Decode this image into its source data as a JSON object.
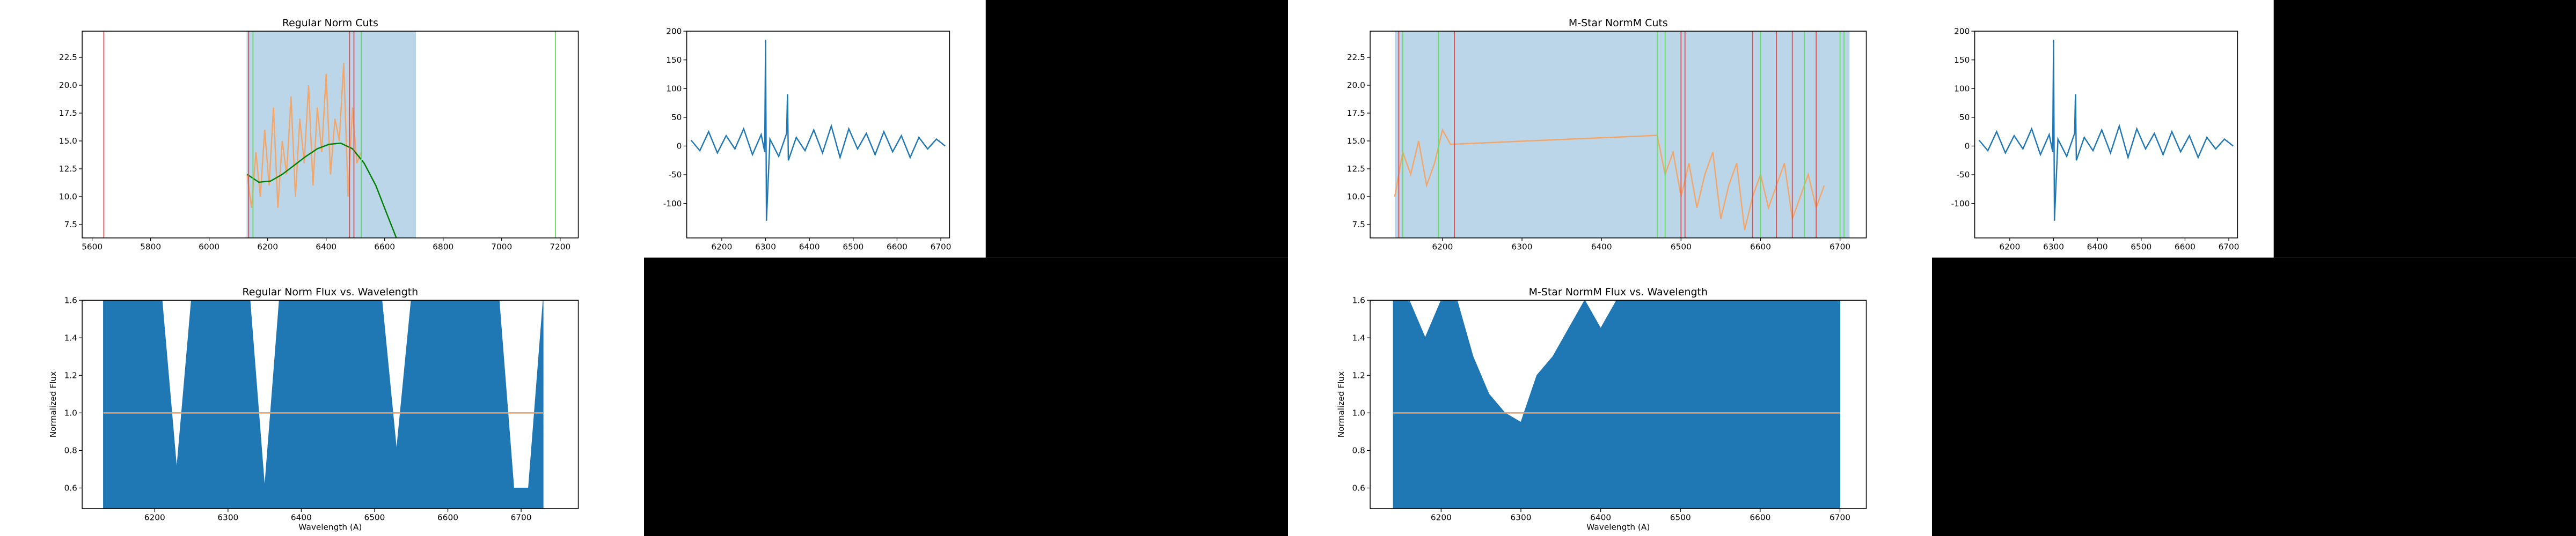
{
  "chart_data": [
    {
      "type": "line",
      "title": "Regular Norm Cuts",
      "xlim": [
        5566,
        7262
      ],
      "xticks": [
        5600,
        5800,
        6000,
        6200,
        6400,
        6600,
        6800,
        7000,
        7200
      ],
      "ylim": [
        6.3,
        24.85
      ],
      "yticks": [
        7.5,
        {
          "value": 10,
          "label": "10.0"
        },
        12.5,
        {
          "value": 15,
          "label": "15.0"
        },
        17.5,
        {
          "value": 20,
          "label": "20.0"
        },
        22.5
      ],
      "spans": [
        {
          "x0": 6128,
          "x1": 6707,
          "color": "#bcd6e9"
        }
      ],
      "series": [
        {
          "color": "#f3a66a",
          "x": [
            6130,
            6145,
            6160,
            6175,
            6190,
            6205,
            6220,
            6235,
            6250,
            6265,
            6280,
            6295,
            6310,
            6325,
            6340,
            6355,
            6370,
            6385,
            6400,
            6415,
            6430,
            6445,
            6460,
            6475,
            6490,
            6505,
            6520
          ],
          "values": [
            12,
            9,
            14,
            10,
            16,
            11,
            18,
            9,
            15,
            12,
            19,
            10,
            17,
            13,
            20,
            11,
            18,
            14,
            21,
            12,
            17,
            15,
            22,
            10,
            18,
            13,
            14
          ]
        },
        {
          "color": "#008000",
          "x": [
            6130,
            6170,
            6210,
            6250,
            6290,
            6330,
            6370,
            6410,
            6450,
            6490,
            6530,
            6570,
            6610,
            6640
          ],
          "values": [
            12.0,
            11.3,
            11.4,
            12.0,
            12.8,
            13.6,
            14.3,
            14.7,
            14.8,
            14.3,
            13.0,
            11.0,
            8.3,
            6.3
          ]
        }
      ],
      "vlines": [
        {
          "x": 5640,
          "color": "#e05050"
        },
        {
          "x": 6135,
          "color": "#e05050"
        },
        {
          "x": 6150,
          "color": "#66dd66"
        },
        {
          "x": 6480,
          "color": "#e05050"
        },
        {
          "x": 6495,
          "color": "#e05050"
        },
        {
          "x": 6520,
          "color": "#66dd66"
        },
        {
          "x": 7184,
          "color": "#66dd66"
        }
      ]
    },
    {
      "type": "line",
      "xlim": [
        6120,
        6720
      ],
      "xticks": [
        6200,
        6300,
        6400,
        6500,
        6600,
        6700
      ],
      "ylim": [
        -160,
        200
      ],
      "yticks": [
        -100,
        -50,
        0,
        50,
        100,
        150,
        200
      ],
      "series": [
        {
          "color": "#1f77b4",
          "x": [
            6130,
            6150,
            6170,
            6190,
            6210,
            6230,
            6250,
            6270,
            6290,
            6298,
            6300,
            6302,
            6310,
            6330,
            6348,
            6350,
            6352,
            6370,
            6390,
            6410,
            6430,
            6450,
            6470,
            6490,
            6510,
            6530,
            6550,
            6570,
            6590,
            6610,
            6630,
            6650,
            6670,
            6690,
            6710
          ],
          "values": [
            10,
            -8,
            25,
            -12,
            18,
            -5,
            30,
            -15,
            20,
            -10,
            185,
            -130,
            12,
            -18,
            22,
            90,
            -25,
            15,
            -8,
            28,
            -12,
            35,
            -20,
            30,
            -5,
            22,
            -15,
            25,
            -10,
            18,
            -20,
            15,
            -5,
            12,
            0
          ]
        }
      ]
    },
    {
      "type": "line",
      "title": "Regular Norm Flux vs. Wavelength",
      "xlabel": "Wavelength (A)",
      "ylabel": "Normalized Flux",
      "xlim": [
        6101,
        6778
      ],
      "xticks": [
        6200,
        6300,
        6400,
        6500,
        6600,
        6700
      ],
      "ylim": [
        0.49,
        1.6
      ],
      "yticks": [
        0.6,
        0.8,
        {
          "value": 1,
          "label": "1.0"
        },
        1.2,
        1.4,
        1.6
      ],
      "bands": [
        {
          "color": "#1f77b4",
          "x": [
            6130,
            6150,
            6170,
            6190,
            6210,
            6230,
            6250,
            6270,
            6290,
            6310,
            6330,
            6350,
            6370,
            6390,
            6410,
            6430,
            6450,
            6470,
            6490,
            6510,
            6530,
            6550,
            6570,
            6590,
            6610,
            6630,
            6650,
            6670,
            6690,
            6710,
            6730
          ],
          "upper": [
            1.6,
            1.6,
            1.6,
            1.6,
            1.6,
            0.7,
            1.6,
            1.6,
            1.6,
            1.6,
            1.6,
            0.6,
            1.6,
            1.6,
            1.6,
            1.6,
            1.6,
            1.6,
            1.6,
            1.6,
            0.8,
            1.6,
            1.6,
            1.6,
            1.6,
            1.6,
            1.6,
            1.6,
            0.6,
            0.6,
            1.6
          ],
          "lower": [
            0.49,
            0.49,
            0.49,
            0.49,
            0.49,
            0.49,
            0.49,
            0.49,
            0.49,
            0.49,
            0.49,
            0.49,
            0.49,
            0.49,
            0.49,
            0.49,
            0.49,
            0.49,
            0.49,
            0.49,
            0.49,
            0.49,
            0.49,
            0.49,
            0.49,
            0.49,
            0.49,
            0.49,
            0.49,
            0.49,
            0.49
          ]
        }
      ],
      "series": [
        {
          "color": "#e0a070",
          "x": [
            6130,
            6730
          ],
          "values": [
            1,
            1
          ]
        }
      ]
    },
    {
      "type": "line",
      "title": "M-Star NormM Cuts",
      "xlim": [
        6109,
        6733
      ],
      "xticks": [
        6200,
        6300,
        6400,
        6500,
        6600,
        6700
      ],
      "ylim": [
        6.3,
        24.85
      ],
      "yticks": [
        7.5,
        {
          "value": 10,
          "label": "10.0"
        },
        12.5,
        {
          "value": 15,
          "label": "15.0"
        },
        17.5,
        {
          "value": 20,
          "label": "20.0"
        },
        22.5
      ],
      "spans": [
        {
          "x0": 6140,
          "x1": 6712,
          "color": "#bcd6e9"
        }
      ],
      "series": [
        {
          "color": "#f3a66a",
          "x": [
            6140,
            6150,
            6160,
            6170,
            6180,
            6190,
            6200,
            6210,
            6470,
            6480,
            6490,
            6500,
            6510,
            6520,
            6530,
            6540,
            6550,
            6560,
            6570,
            6580,
            6590,
            6600,
            6610,
            6620,
            6630,
            6640,
            6650,
            6660,
            6670,
            6680
          ],
          "values": [
            10,
            14,
            12,
            15,
            11,
            13,
            16,
            14.7,
            15.5,
            12,
            14,
            10,
            13,
            9,
            12,
            14,
            8,
            11,
            13,
            7,
            10,
            12,
            9,
            11,
            13,
            8,
            10,
            12,
            9,
            11
          ]
        }
      ],
      "vlines": [
        {
          "x": 6145,
          "color": "#e05050"
        },
        {
          "x": 6150,
          "color": "#66dd66"
        },
        {
          "x": 6195,
          "color": "#66dd66"
        },
        {
          "x": 6215,
          "color": "#e05050"
        },
        {
          "x": 6470,
          "color": "#66dd66"
        },
        {
          "x": 6480,
          "color": "#66dd66"
        },
        {
          "x": 6500,
          "color": "#e05050"
        },
        {
          "x": 6505,
          "color": "#e05050"
        },
        {
          "x": 6590,
          "color": "#e05050"
        },
        {
          "x": 6600,
          "color": "#66dd66"
        },
        {
          "x": 6620,
          "color": "#e05050"
        },
        {
          "x": 6640,
          "color": "#e05050"
        },
        {
          "x": 6655,
          "color": "#66dd66"
        },
        {
          "x": 6670,
          "color": "#e05050"
        },
        {
          "x": 6700,
          "color": "#66dd66"
        },
        {
          "x": 6705,
          "color": "#66dd66"
        }
      ]
    },
    {
      "type": "line",
      "xlim": [
        6120,
        6720
      ],
      "xticks": [
        6200,
        6300,
        6400,
        6500,
        6600,
        6700
      ],
      "ylim": [
        -160,
        200
      ],
      "yticks": [
        -100,
        -50,
        0,
        50,
        100,
        150,
        200
      ],
      "series": [
        {
          "color": "#1f77b4",
          "x": [
            6130,
            6150,
            6170,
            6190,
            6210,
            6230,
            6250,
            6270,
            6290,
            6298,
            6300,
            6302,
            6310,
            6330,
            6348,
            6350,
            6352,
            6370,
            6390,
            6410,
            6430,
            6450,
            6470,
            6490,
            6510,
            6530,
            6550,
            6570,
            6590,
            6610,
            6630,
            6650,
            6670,
            6690,
            6710
          ],
          "values": [
            10,
            -8,
            25,
            -12,
            18,
            -5,
            30,
            -15,
            20,
            -10,
            185,
            -130,
            12,
            -18,
            22,
            90,
            -25,
            15,
            -8,
            28,
            -12,
            35,
            -20,
            30,
            -5,
            22,
            -15,
            25,
            -10,
            18,
            -20,
            15,
            -5,
            12,
            0
          ]
        }
      ]
    },
    {
      "type": "line",
      "title": "M-Star NormM Flux vs. Wavelength",
      "xlabel": "Wavelength (A)",
      "ylabel": "Normalized Flux",
      "xlim": [
        6111,
        6733
      ],
      "xticks": [
        6200,
        6300,
        6400,
        6500,
        6600,
        6700
      ],
      "ylim": [
        0.49,
        1.6
      ],
      "yticks": [
        0.6,
        0.8,
        {
          "value": 1,
          "label": "1.0"
        },
        1.2,
        1.4,
        1.6
      ],
      "bands": [
        {
          "color": "#1f77b4",
          "x": [
            6140,
            6160,
            6180,
            6200,
            6220,
            6240,
            6260,
            6280,
            6300,
            6320,
            6340,
            6360,
            6380,
            6400,
            6420,
            6440,
            6460,
            6480,
            6500,
            6520,
            6540,
            6560,
            6580,
            6600,
            6620,
            6640,
            6660,
            6680,
            6700
          ],
          "upper": [
            1.6,
            1.6,
            1.4,
            1.6,
            1.6,
            1.3,
            1.1,
            1.0,
            0.95,
            1.2,
            1.3,
            1.45,
            1.6,
            1.45,
            1.6,
            1.6,
            1.6,
            1.6,
            1.6,
            1.6,
            1.6,
            1.6,
            1.6,
            1.6,
            1.6,
            1.6,
            1.6,
            1.6,
            1.6
          ],
          "lower": [
            0.49,
            0.49,
            0.49,
            0.49,
            0.49,
            0.49,
            0.49,
            0.49,
            0.49,
            0.49,
            0.49,
            0.49,
            0.49,
            0.49,
            0.49,
            0.49,
            0.49,
            0.49,
            0.49,
            0.49,
            0.49,
            0.49,
            0.49,
            0.49,
            0.49,
            0.49,
            0.49,
            0.49,
            0.49
          ]
        }
      ],
      "series": [
        {
          "color": "#e0a070",
          "x": [
            6140,
            6700
          ],
          "values": [
            1,
            1
          ]
        }
      ]
    }
  ]
}
